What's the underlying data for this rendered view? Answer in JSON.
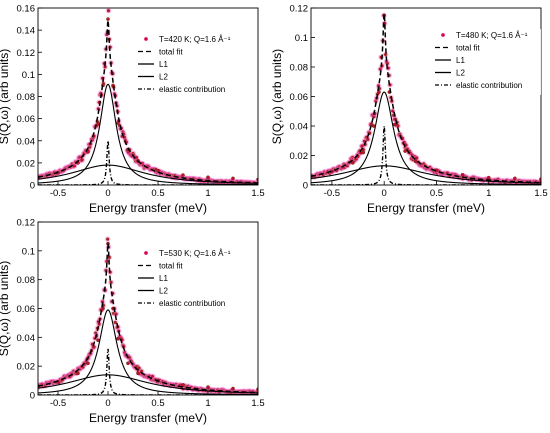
{
  "chart_data": [
    {
      "type": "line",
      "panel": "T=420 K",
      "xlabel": "Energy transfer (meV)",
      "ylabel": "S(Q,ω) (arb units)",
      "xlim": [
        -0.7,
        1.5
      ],
      "ylim": [
        0,
        0.16
      ],
      "xticks": [
        -0.5,
        0,
        0.5,
        1,
        1.5
      ],
      "xtick_labels": [
        "-0.5",
        "0",
        "0.5",
        "1",
        "1.5"
      ],
      "yticks": [
        0,
        0.02,
        0.04,
        0.06,
        0.08,
        0.1,
        0.12,
        0.14,
        0.16
      ],
      "ytick_labels": [
        "0",
        "0.02",
        "0.04",
        "0.06",
        "0.08",
        "0.1",
        "0.12",
        "0.14",
        "0.16"
      ],
      "legend": {
        "position": "top-right",
        "entries": [
          "T=420 K; Q=1.6 Å⁻¹",
          "total fit",
          "L1",
          "L2",
          "elastic contribution"
        ]
      },
      "series": [
        {
          "name": "T=420 K; Q=1.6 Å⁻¹",
          "kind": "data points",
          "x": [
            -0.7,
            -0.5,
            -0.3,
            -0.2,
            -0.1,
            -0.05,
            0,
            0.05,
            0.1,
            0.2,
            0.3,
            0.5,
            0.75,
            1.0,
            1.25,
            1.5
          ],
          "y": [
            0.007,
            0.011,
            0.02,
            0.03,
            0.055,
            0.09,
            0.15,
            0.09,
            0.056,
            0.032,
            0.022,
            0.013,
            0.009,
            0.007,
            0.006,
            0.005
          ]
        },
        {
          "name": "total fit",
          "kind": "dashed line",
          "x": [
            -0.7,
            -0.5,
            -0.3,
            -0.2,
            -0.1,
            -0.05,
            0,
            0.05,
            0.1,
            0.2,
            0.3,
            0.5,
            0.75,
            1.0,
            1.25,
            1.5
          ],
          "y": [
            0.007,
            0.011,
            0.02,
            0.03,
            0.055,
            0.09,
            0.15,
            0.09,
            0.056,
            0.032,
            0.022,
            0.013,
            0.009,
            0.007,
            0.006,
            0.005
          ]
        },
        {
          "name": "L1",
          "kind": "solid line",
          "peak": 0.091,
          "hwhm": 0.1,
          "center": 0.0
        },
        {
          "name": "L2",
          "kind": "solid line",
          "peak": 0.018,
          "hwhm": 0.45,
          "center": 0.0
        },
        {
          "name": "elastic contribution",
          "kind": "dash-dot line",
          "peak": 0.04,
          "hwhm": 0.014,
          "center": 0.0
        }
      ]
    },
    {
      "type": "line",
      "panel": "T=480 K",
      "xlabel": "Energy transfer (meV)",
      "ylabel": "S(Q,ω) (arb units)",
      "xlim": [
        -0.7,
        1.5
      ],
      "ylim": [
        0,
        0.12
      ],
      "xticks": [
        -0.5,
        0,
        0.5,
        1,
        1.5
      ],
      "xtick_labels": [
        "-0.5",
        "0",
        "0.5",
        "1",
        "1.5"
      ],
      "yticks": [
        0,
        0.02,
        0.04,
        0.06,
        0.08,
        0.1,
        0.12
      ],
      "ytick_labels": [
        "0",
        "0.02",
        "0.04",
        "0.06",
        "0.08",
        "0.1",
        "0.12"
      ],
      "legend": {
        "position": "top-right",
        "entries": [
          "T=480 K; Q=1.6 Å⁻¹",
          "total fit",
          "L1",
          "L2",
          "elastic contribution"
        ]
      },
      "series": [
        {
          "name": "T=480 K; Q=1.6 Å⁻¹",
          "kind": "data points",
          "x": [
            -0.7,
            -0.5,
            -0.3,
            -0.2,
            -0.1,
            -0.05,
            0,
            0.05,
            0.1,
            0.2,
            0.3,
            0.5,
            0.75,
            1.0,
            1.25,
            1.5
          ],
          "y": [
            0.006,
            0.009,
            0.015,
            0.022,
            0.04,
            0.063,
            0.115,
            0.063,
            0.041,
            0.023,
            0.016,
            0.01,
            0.007,
            0.005,
            0.0045,
            0.004
          ]
        },
        {
          "name": "total fit",
          "kind": "dashed line",
          "x": [
            -0.7,
            -0.5,
            -0.3,
            -0.2,
            -0.1,
            -0.05,
            0,
            0.05,
            0.1,
            0.2,
            0.3,
            0.5,
            0.75,
            1.0,
            1.25,
            1.5
          ],
          "y": [
            0.006,
            0.009,
            0.015,
            0.022,
            0.04,
            0.063,
            0.115,
            0.063,
            0.041,
            0.023,
            0.016,
            0.01,
            0.007,
            0.005,
            0.0045,
            0.004
          ]
        },
        {
          "name": "L1",
          "kind": "solid line",
          "peak": 0.063,
          "hwhm": 0.11,
          "center": 0.0
        },
        {
          "name": "L2",
          "kind": "solid line",
          "peak": 0.013,
          "hwhm": 0.5,
          "center": 0.0
        },
        {
          "name": "elastic contribution",
          "kind": "dash-dot line",
          "peak": 0.04,
          "hwhm": 0.014,
          "center": 0.0
        }
      ]
    },
    {
      "type": "line",
      "panel": "T=530 K",
      "xlabel": "Energy transfer (meV)",
      "ylabel": "S(Q,ω) (arb units)",
      "xlim": [
        -0.7,
        1.5
      ],
      "ylim": [
        0,
        0.12
      ],
      "xticks": [
        -0.5,
        0,
        0.5,
        1,
        1.5
      ],
      "xtick_labels": [
        "-0.5",
        "0",
        "0.5",
        "1",
        "1.5"
      ],
      "yticks": [
        0,
        0.02,
        0.04,
        0.06,
        0.08,
        0.1,
        0.12
      ],
      "ytick_labels": [
        "0",
        "0.02",
        "0.04",
        "0.06",
        "0.08",
        "0.1",
        "0.12"
      ],
      "legend": {
        "position": "top-right",
        "entries": [
          "T=530 K; Q=1.6 Å⁻¹",
          "total fit",
          "L1",
          "L2",
          "elastic contribution"
        ]
      },
      "series": [
        {
          "name": "T=530 K; Q=1.6 Å⁻¹",
          "kind": "data points",
          "x": [
            -0.7,
            -0.5,
            -0.3,
            -0.2,
            -0.1,
            -0.05,
            0,
            0.05,
            0.1,
            0.2,
            0.3,
            0.5,
            0.75,
            1.0,
            1.25,
            1.5
          ],
          "y": [
            0.006,
            0.009,
            0.015,
            0.022,
            0.038,
            0.06,
            0.105,
            0.06,
            0.039,
            0.022,
            0.015,
            0.01,
            0.007,
            0.0055,
            0.0045,
            0.004
          ]
        },
        {
          "name": "total fit",
          "kind": "dashed line",
          "x": [
            -0.7,
            -0.5,
            -0.3,
            -0.2,
            -0.1,
            -0.05,
            0,
            0.05,
            0.1,
            0.2,
            0.3,
            0.5,
            0.75,
            1.0,
            1.25,
            1.5
          ],
          "y": [
            0.006,
            0.009,
            0.015,
            0.022,
            0.038,
            0.06,
            0.105,
            0.06,
            0.039,
            0.022,
            0.015,
            0.01,
            0.007,
            0.0055,
            0.0045,
            0.004
          ]
        },
        {
          "name": "L1",
          "kind": "solid line",
          "peak": 0.059,
          "hwhm": 0.11,
          "center": 0.0
        },
        {
          "name": "L2",
          "kind": "solid line",
          "peak": 0.014,
          "hwhm": 0.5,
          "center": 0.0
        },
        {
          "name": "elastic contribution",
          "kind": "dash-dot line",
          "peak": 0.032,
          "hwhm": 0.014,
          "center": 0.0
        }
      ]
    }
  ],
  "colors": {
    "points_fill": "#c8102e",
    "points_halo": "#ff66cc",
    "fit_line": "#000000",
    "axes": "#000000"
  }
}
